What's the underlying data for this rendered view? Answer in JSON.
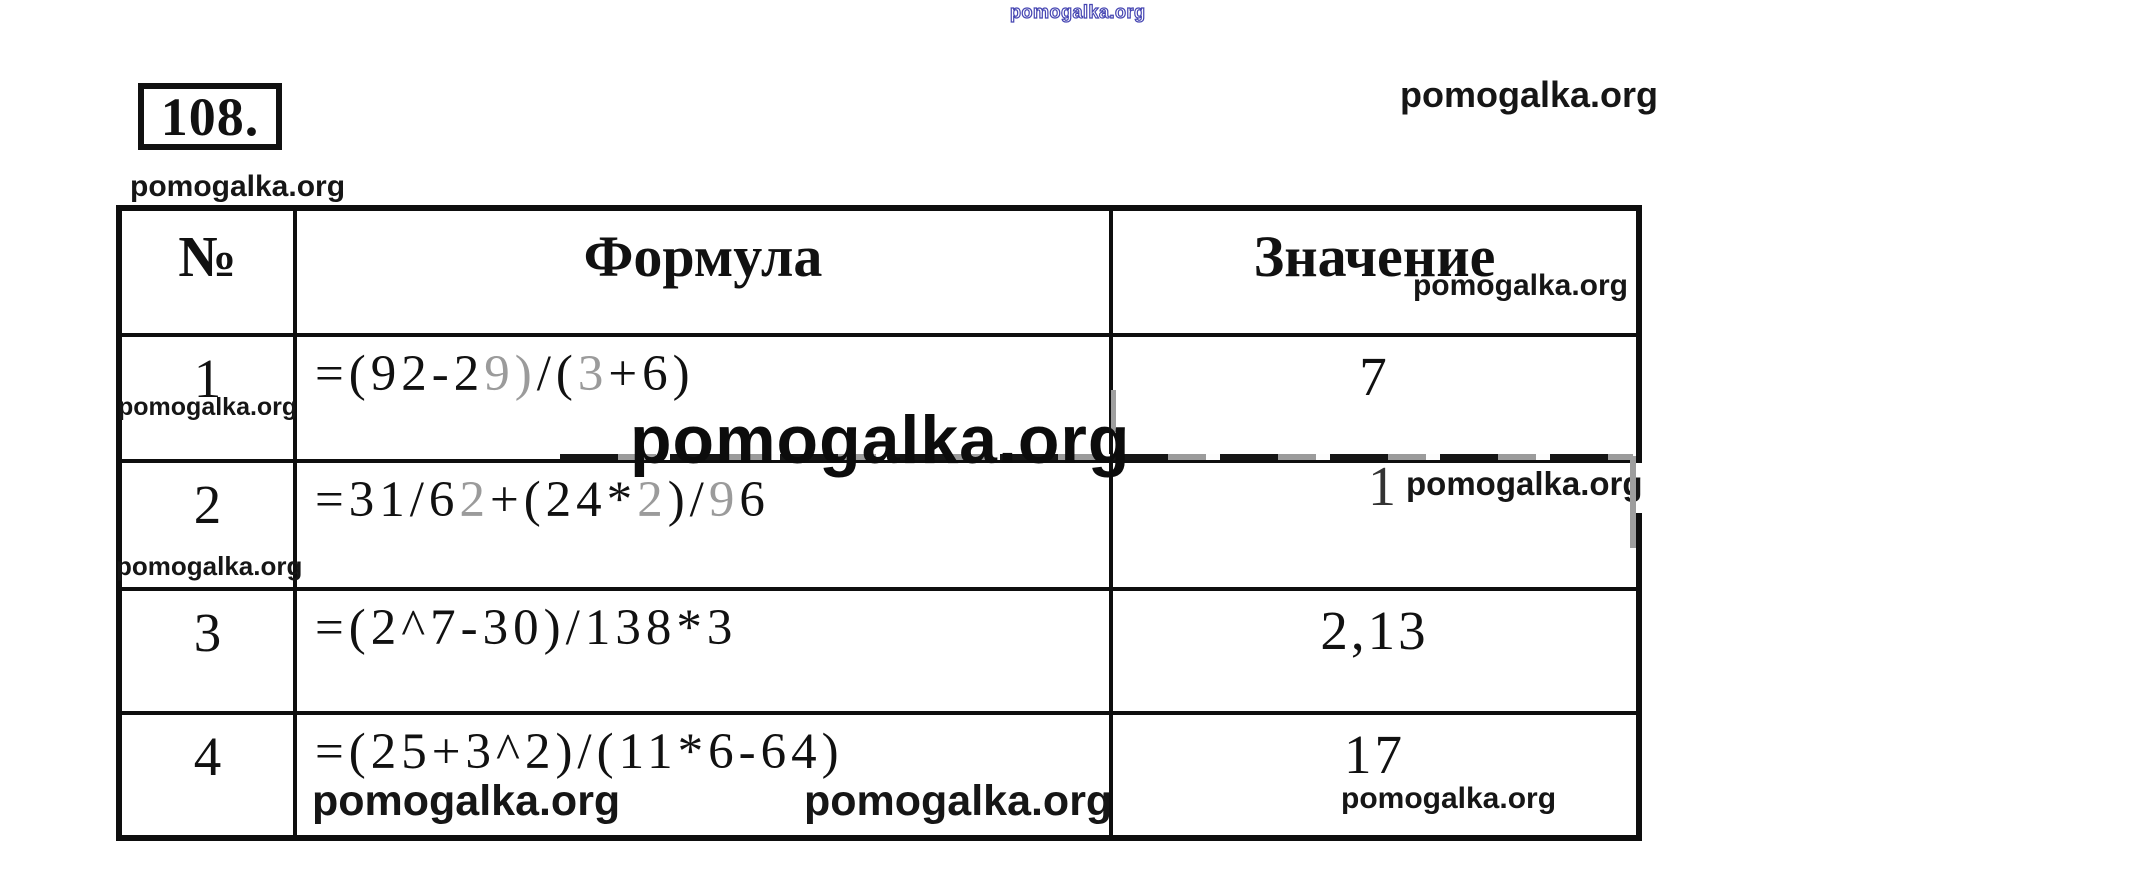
{
  "page": {
    "task_number": "108.",
    "site_watermark": "pomogalka.org",
    "colors": {
      "ink": "#111111",
      "faded_artifact": "#9b9b9b",
      "watermark_blue": "#4545b2",
      "background": "#ffffff"
    }
  },
  "table": {
    "headers": {
      "number": "№",
      "formula": "Формула",
      "value": "Значение"
    },
    "rows": [
      {
        "no": "1",
        "formula": "=(92-29)/(3+6)",
        "value": "7",
        "formula_segments": [
          {
            "t": "=(92-2"
          },
          {
            "t": "9)",
            "f": true
          },
          {
            "t": "/("
          },
          {
            "t": "3",
            "f": true
          },
          {
            "t": "+6)"
          }
        ]
      },
      {
        "no": "2",
        "formula": "=31/62+(24*2)/96",
        "value": "1",
        "formula_segments": [
          {
            "t": "=31/6"
          },
          {
            "t": "2",
            "f": true
          },
          {
            "t": "+(24*"
          },
          {
            "t": "2",
            "f": true
          },
          {
            "t": ")/"
          },
          {
            "t": "9",
            "f": true
          },
          {
            "t": "6"
          }
        ]
      },
      {
        "no": "3",
        "formula": "=(2^7-30)/138*3",
        "value": "2,13"
      },
      {
        "no": "4",
        "formula": "=(25+3^2)/(11*6-64)",
        "value": "17"
      }
    ]
  }
}
